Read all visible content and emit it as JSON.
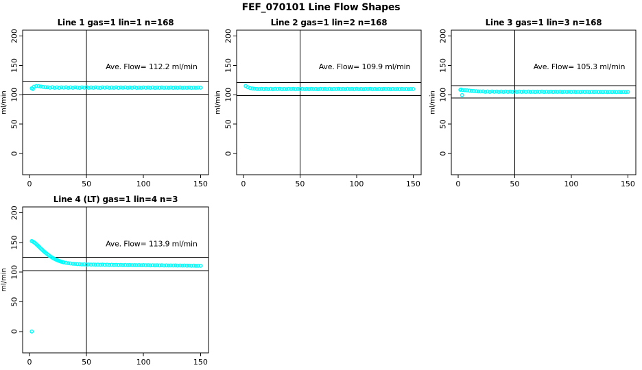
{
  "main_title": "FEF_070101  Line Flow Shapes",
  "colors": {
    "marker": "#00ffff",
    "axis": "#000000",
    "background": "#ffffff"
  },
  "chart_data": {
    "type": "scatter",
    "title": "FEF_070101  Line Flow Shapes",
    "xlabel": "",
    "ylabel": "ml/min",
    "x_ticks": [
      0,
      50,
      100,
      150
    ],
    "y_ticks": [
      0,
      50,
      100,
      150,
      200
    ],
    "x_range": [
      -6,
      157
    ],
    "y_range": [
      -36,
      210
    ],
    "vline_x": 50,
    "marker_color": "#00ffff",
    "grid": "off",
    "panels": [
      {
        "name": "line-1",
        "title": "Line 1 gas=1 lin=1 n=168",
        "n": 168,
        "ave_flow": 112.2,
        "annotation": "Ave. Flow=  112.2  ml/min",
        "hlines": [
          123.4,
          101.0
        ],
        "grid": {
          "row": 0,
          "col": 0
        },
        "segments": [
          {
            "x_start": 2,
            "x_step": 2,
            "y": [
              111.0,
              113.9,
              114.8,
              114.6,
              114.1,
              113.5,
              112.9,
              112.8,
              112.1,
              112.9,
              111.9,
              112.6,
              111.8,
              112.7,
              112.2,
              112.8,
              112.0,
              112.6,
              111.9,
              112.7,
              112.3,
              111.8,
              112.6,
              112.1,
              112.8,
              111.9,
              112.5,
              112.0,
              112.7,
              112.2,
              111.8,
              112.6,
              112.1,
              112.7,
              111.9,
              112.4,
              112.0,
              112.6,
              111.8,
              112.5,
              112.1,
              112.6,
              111.9,
              112.4,
              112.0,
              112.6,
              111.8,
              112.3,
              112.0,
              112.5,
              111.9,
              112.4,
              112.0,
              112.5,
              111.8,
              112.3,
              112.0,
              112.4,
              111.9,
              112.3,
              112.0,
              112.4,
              111.8,
              112.3,
              112.0,
              112.4,
              111.9,
              112.2,
              112.0,
              112.3,
              111.8,
              112.2,
              112.0,
              112.3,
              112.1
            ]
          }
        ],
        "extra_points": [
          [
            3,
            110.0
          ]
        ]
      },
      {
        "name": "line-2",
        "title": "Line 2 gas=1 lin=2 n=168",
        "n": 168,
        "ave_flow": 109.9,
        "annotation": "Ave. Flow=  109.9  ml/min",
        "hlines": [
          120.9,
          98.9
        ],
        "grid": {
          "row": 0,
          "col": 1
        },
        "segments": [
          {
            "x_start": 2,
            "x_step": 2,
            "y": [
              115.0,
              112.8,
              111.4,
              110.7,
              110.3,
              110.0,
              109.7,
              110.2,
              109.5,
              110.1,
              109.6,
              110.2,
              109.5,
              110.1,
              109.7,
              110.2,
              109.5,
              110.0,
              109.6,
              110.2,
              109.7,
              110.1,
              109.5,
              110.0,
              109.7,
              110.2,
              109.6,
              110.0,
              109.5,
              110.1,
              109.7,
              110.0,
              109.5,
              110.1,
              109.7,
              110.0,
              109.6,
              110.1,
              109.5,
              110.0,
              109.7,
              110.1,
              109.5,
              110.0,
              109.6,
              110.1,
              109.7,
              110.0,
              109.5,
              110.1,
              109.6,
              110.0,
              109.5,
              110.0,
              109.7,
              110.1,
              109.5,
              110.0,
              109.6,
              110.0,
              109.5,
              110.0,
              109.7,
              110.0,
              109.5,
              110.0,
              109.6,
              109.9,
              109.5,
              110.0,
              109.6,
              109.9,
              109.5,
              109.9,
              109.8
            ]
          }
        ],
        "extra_points": []
      },
      {
        "name": "line-3",
        "title": "Line 3 gas=1 lin=3 n=168",
        "n": 168,
        "ave_flow": 105.3,
        "annotation": "Ave. Flow=  105.3  ml/min",
        "hlines": [
          115.8,
          94.8
        ],
        "grid": {
          "row": 0,
          "col": 2
        },
        "segments": [
          {
            "x_start": 2,
            "x_step": 2,
            "y": [
              108.5,
              108.0,
              107.8,
              107.5,
              107.0,
              106.6,
              106.3,
              106.0,
              105.8,
              105.6,
              105.8,
              105.1,
              105.6,
              105.0,
              105.6,
              105.1,
              105.5,
              104.9,
              105.5,
              105.0,
              105.5,
              104.9,
              105.4,
              105.0,
              105.5,
              104.9,
              105.4,
              105.0,
              105.4,
              104.9,
              105.4,
              105.0,
              105.3,
              104.8,
              105.3,
              105.0,
              105.4,
              104.8,
              105.3,
              104.9,
              105.3,
              104.8,
              105.2,
              104.9,
              105.3,
              104.8,
              105.2,
              104.9,
              105.2,
              104.8,
              105.2,
              104.8,
              105.1,
              104.7,
              105.2,
              104.8,
              105.1,
              104.7,
              105.1,
              104.8,
              105.1,
              104.7,
              105.0,
              104.7,
              105.1,
              104.7,
              105.0,
              104.7,
              105.0,
              104.6,
              105.0,
              104.7,
              104.9,
              104.6,
              104.9
            ]
          }
        ],
        "extra_points": [
          [
            2.5,
            109.0
          ],
          [
            3.5,
            99.5
          ]
        ]
      },
      {
        "name": "line-4",
        "title": "Line 4 (LT) gas=1 lin=4 n=3",
        "n": 3,
        "ave_flow": 113.9,
        "annotation": "Ave. Flow=  113.9  ml/min",
        "hlines": [
          125.3,
          102.5
        ],
        "grid": {
          "row": 1,
          "col": 0
        },
        "segments": [
          {
            "x_start": 2,
            "x_step": 1,
            "y": [
              152.5,
              151.6,
              150.3,
              148.8,
              147.2,
              145.4,
              143.5,
              141.6,
              139.8,
              138.0,
              136.2,
              134.5,
              132.9,
              131.3,
              129.8,
              128.4,
              127.0,
              125.7,
              124.5,
              123.4,
              122.4,
              121.4,
              120.5,
              119.7,
              119.0,
              118.3,
              117.7,
              117.1,
              116.6
            ]
          },
          {
            "x_start": 32,
            "x_step": 2,
            "y": [
              115.9,
              115.2,
              114.7,
              114.3,
              114.0,
              113.6,
              113.5,
              113.1,
              113.2,
              112.8,
              113.0,
              112.7,
              112.9,
              112.6,
              112.8,
              112.5,
              112.7,
              112.4,
              112.6,
              112.3,
              112.5,
              112.2,
              112.4,
              112.1,
              112.3,
              112.0,
              112.2,
              111.9,
              112.1,
              111.8,
              112.0,
              111.8,
              111.9,
              111.7,
              111.9,
              111.6,
              111.8,
              111.5,
              111.7,
              111.5,
              111.6,
              111.4,
              111.6,
              111.3,
              111.5,
              111.3,
              111.4,
              111.2,
              111.4,
              111.1,
              111.3,
              111.1,
              111.2,
              111.0,
              111.1,
              110.9,
              111.0,
              110.8,
              110.9,
              110.8
            ]
          }
        ],
        "extra_points": [
          [
            2,
            0
          ]
        ]
      }
    ]
  }
}
